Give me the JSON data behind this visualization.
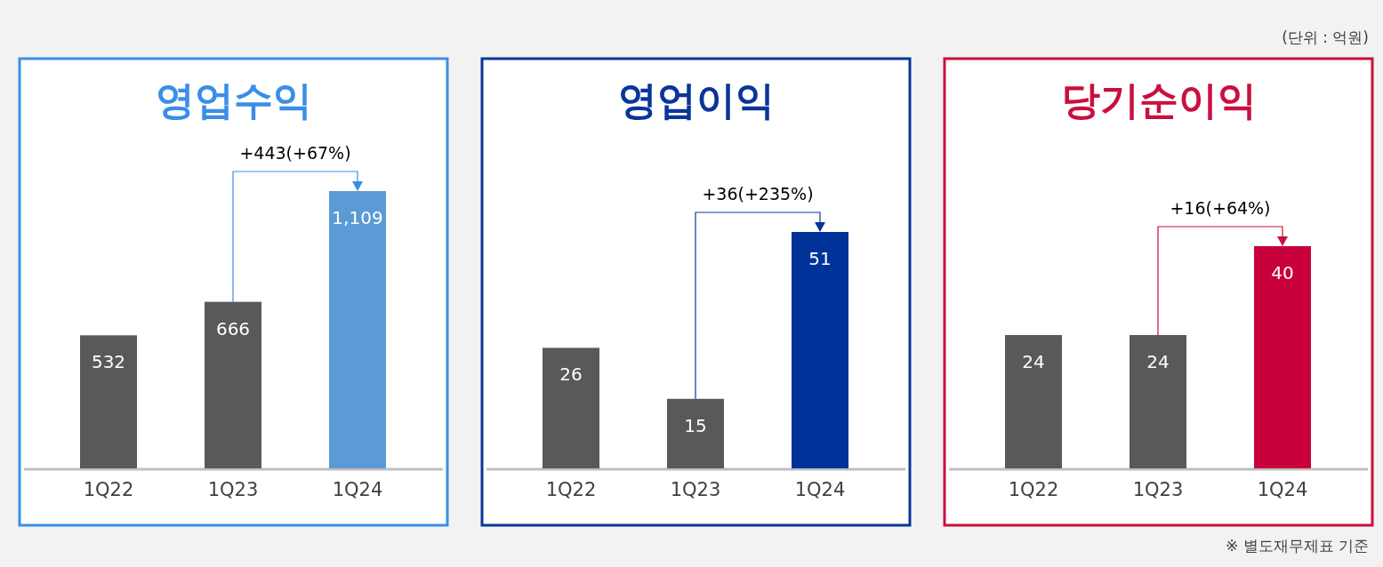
{
  "chart_data": [
    {
      "type": "bar",
      "title": "영업수익",
      "categories": [
        "1Q22",
        "1Q23",
        "1Q24"
      ],
      "values": [
        532,
        666,
        1109
      ],
      "value_labels": [
        "532",
        "666",
        "1,109"
      ],
      "colors": [
        "#595959",
        "#595959",
        "#5b9bd5"
      ],
      "annotations": [
        "+443(+67%)"
      ]
    },
    {
      "type": "bar",
      "title": "영업이익",
      "categories": [
        "1Q22",
        "1Q23",
        "1Q24"
      ],
      "values": [
        26,
        15,
        51
      ],
      "data_labels": true,
      "colors": [
        "#595959",
        "#595959",
        "#003399"
      ],
      "annotations": [
        "+36(+235%)"
      ]
    },
    {
      "type": "bar",
      "title": "당기순이익",
      "categories": [
        "1Q22",
        "1Q23",
        "1Q24"
      ],
      "values": [
        24,
        24,
        40
      ],
      "data_labels": true,
      "colors": [
        "#595959",
        "#595959",
        "#c8003c"
      ],
      "annotations": [
        "+16(+64%)",
        "(단위 : 억원)",
        "※ 별도재무제표 기준"
      ]
    }
  ]
}
